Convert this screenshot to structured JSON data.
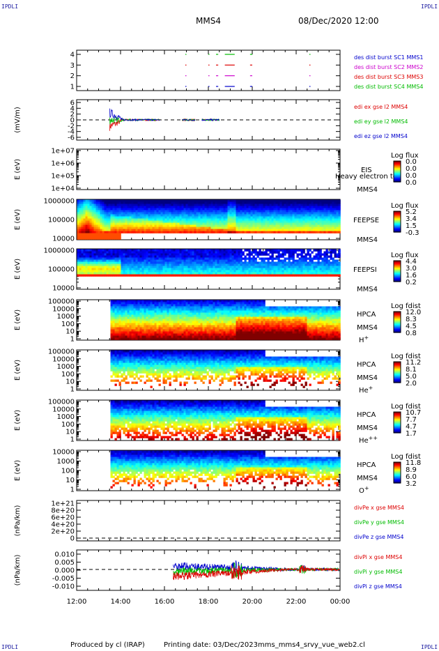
{
  "corner_label": "IPDLI",
  "header": {
    "spacecraft": "MMS4",
    "datetime": "08/Dec/2020 12:00"
  },
  "footer": {
    "produced_by": "Produced by cl (IRAP)",
    "printing_date": "Printing date: 03/Dec/2023",
    "filename": "mms_mms4_srvy_vue_web2.cl"
  },
  "chart_data": [
    {
      "id": "burst",
      "type": "scatter",
      "yticks": [
        "1",
        "2",
        "3",
        "4"
      ],
      "series": [
        {
          "name": "des dist burst SC1 MMS1",
          "color": "#0000cc",
          "y": 1
        },
        {
          "name": "des dist burst SC2 MMS2",
          "color": "#cc00cc",
          "y": 2
        },
        {
          "name": "des dist burst SC3 MMS3",
          "color": "#dd0000",
          "y": 3
        },
        {
          "name": "des dist burst SC4 MMS4",
          "color": "#00bb00",
          "y": 4
        }
      ],
      "burst_intervals_hours": [
        [
          16.95,
          17.0
        ],
        [
          18.0,
          18.05
        ],
        [
          18.35,
          18.45
        ],
        [
          18.75,
          19.2
        ],
        [
          19.9,
          20.0
        ],
        [
          22.6,
          22.65
        ]
      ]
    },
    {
      "id": "edi",
      "type": "line",
      "ylabel": "(mV/m)",
      "yticks": [
        "6",
        "4",
        "2",
        "0",
        "-2",
        "-4",
        "-6"
      ],
      "series": [
        {
          "name": "edi ex gse l2 MMS4",
          "color": "#dd0000"
        },
        {
          "name": "edi ey gse l2 MMS4",
          "color": "#00bb00"
        },
        {
          "name": "edi ez gse l2 MMS4",
          "color": "#0000cc"
        }
      ]
    },
    {
      "id": "eis",
      "type": "heatmap",
      "ylabel": "E (eV)",
      "yticks": [
        "1e+07",
        "1e+06",
        "1e+05",
        "1e+04"
      ],
      "instrument": "EIS",
      "overlay": "Heavy electron to",
      "spacecraft": "MMS4",
      "colorbar_title": "Log flux",
      "colorbar_ticks": [
        "0.0",
        "0.0",
        "0.0",
        "0.0"
      ]
    },
    {
      "id": "feepse",
      "type": "heatmap",
      "ylabel": "E (eV)",
      "yticks": [
        "1000000",
        "100000",
        "10000"
      ],
      "instrument": "FEEPSE",
      "spacecraft": "MMS4",
      "colorbar_title": "Log flux",
      "colorbar_ticks": [
        "5.2",
        "3.4",
        "1.5",
        "-0.3"
      ]
    },
    {
      "id": "feepsi",
      "type": "heatmap",
      "ylabel": "E (eV)",
      "yticks": [
        "1000000",
        "100000",
        "10000"
      ],
      "instrument": "FEEPSI",
      "spacecraft": "MMS4",
      "colorbar_title": "Log flux",
      "colorbar_ticks": [
        "4.4",
        "3.0",
        "1.6",
        "0.2"
      ]
    },
    {
      "id": "hpca_h",
      "type": "heatmap",
      "ylabel": "E (eV)",
      "yticks": [
        "100000",
        "10000",
        "1000",
        "100",
        "10",
        "1"
      ],
      "instrument": "HPCA",
      "spacecraft": "MMS4",
      "species": "H",
      "charge": "+",
      "colorbar_title": "Log fdist",
      "colorbar_ticks": [
        "12.0",
        "8.3",
        "4.5",
        "0.8"
      ]
    },
    {
      "id": "hpca_he",
      "type": "heatmap",
      "ylabel": "E (eV)",
      "yticks": [
        "100000",
        "10000",
        "1000",
        "100",
        "10",
        "1"
      ],
      "instrument": "HPCA",
      "spacecraft": "MMS4",
      "species": "He",
      "charge": "+",
      "colorbar_title": "Log fdist",
      "colorbar_ticks": [
        "11.2",
        "8.1",
        "5.0",
        "2.0"
      ]
    },
    {
      "id": "hpca_hepp",
      "type": "heatmap",
      "ylabel": "E (eV)",
      "yticks": [
        "100000",
        "10000",
        "1000",
        "100",
        "10",
        "1"
      ],
      "instrument": "HPCA",
      "spacecraft": "MMS4",
      "species": "He",
      "charge": "++",
      "colorbar_title": "Log fdist",
      "colorbar_ticks": [
        "10.7",
        "7.7",
        "4.7",
        "1.7"
      ]
    },
    {
      "id": "hpca_o",
      "type": "heatmap",
      "ylabel": "E (eV)",
      "yticks": [
        "10000",
        "1000",
        "100",
        "10",
        "1"
      ],
      "instrument": "HPCA",
      "spacecraft": "MMS4",
      "species": "O",
      "charge": "+",
      "colorbar_title": "Log fdist",
      "colorbar_ticks": [
        "11.8",
        "8.9",
        "6.0",
        "3.2"
      ]
    },
    {
      "id": "divpe",
      "type": "line",
      "ylabel": "(nPa/km)",
      "yticks": [
        "1e+21",
        "8e+20",
        "6e+20",
        "4e+20",
        "2e+20",
        "0"
      ],
      "series": [
        {
          "name": "divPe x gse MMS4",
          "color": "#dd0000"
        },
        {
          "name": "divPe y gse MMS4",
          "color": "#00bb00"
        },
        {
          "name": "divPe z gse MMS4",
          "color": "#0000cc"
        }
      ]
    },
    {
      "id": "divpi",
      "type": "line",
      "ylabel": "(nPa/km)",
      "yticks": [
        "0.010",
        "0.005",
        "0.000",
        "-0.005",
        "-0.010"
      ],
      "series": [
        {
          "name": "divPi x gse MMS4",
          "color": "#dd0000"
        },
        {
          "name": "divPi y gse MMS4",
          "color": "#00bb00"
        },
        {
          "name": "divPi z gse MMS4",
          "color": "#0000cc"
        }
      ]
    }
  ],
  "x_axis": {
    "ticks": [
      "12:00",
      "14:00",
      "16:00",
      "18:00",
      "20:00",
      "22:00",
      "00:00"
    ],
    "range_hours": [
      12,
      24
    ]
  }
}
